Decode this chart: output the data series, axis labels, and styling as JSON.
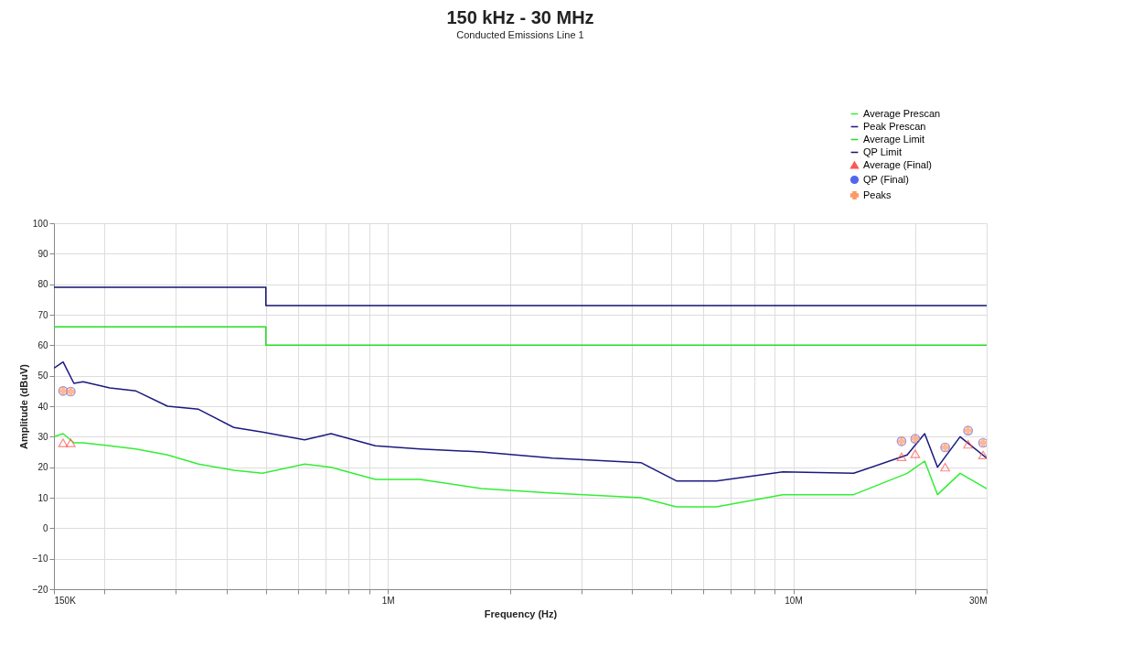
{
  "chart_data": {
    "type": "line",
    "title": "150 kHz - 30 MHz",
    "subtitle": "Conducted Emissions Line 1",
    "xlabel": "Frequency (Hz)",
    "ylabel": "Amplitude (dBuV)",
    "log": "x",
    "grid": true,
    "legend": "top right",
    "xlim": [
      150000,
      30000000
    ],
    "ylim": [
      -20,
      100
    ],
    "xticks": [
      {
        "value": 150000,
        "label": "150K"
      },
      {
        "value": 200000,
        "label": null
      },
      {
        "value": 300000,
        "label": null
      },
      {
        "value": 400000,
        "label": null
      },
      {
        "value": 500000,
        "label": null
      },
      {
        "value": 600000,
        "label": null
      },
      {
        "value": 700000,
        "label": null
      },
      {
        "value": 800000,
        "label": null
      },
      {
        "value": 900000,
        "label": null
      },
      {
        "value": 1000000,
        "label": "1M"
      },
      {
        "value": 2000000,
        "label": null
      },
      {
        "value": 3000000,
        "label": null
      },
      {
        "value": 4000000,
        "label": null
      },
      {
        "value": 5000000,
        "label": null
      },
      {
        "value": 6000000,
        "label": null
      },
      {
        "value": 7000000,
        "label": null
      },
      {
        "value": 8000000,
        "label": null
      },
      {
        "value": 9000000,
        "label": null
      },
      {
        "value": 10000000,
        "label": "10M"
      },
      {
        "value": 20000000,
        "label": null
      },
      {
        "value": 30000000,
        "label": "30M"
      }
    ],
    "yticks": [
      -20,
      -10,
      0,
      10,
      20,
      30,
      40,
      50,
      60,
      70,
      80,
      90,
      100
    ],
    "series": [
      {
        "name": "Average Prescan",
        "color": "#33ee33",
        "x": [
          150000,
          158000,
          168000,
          177000,
          206000,
          239000,
          286000,
          341000,
          417000,
          490000,
          623000,
          724000,
          931000,
          1200000,
          1700000,
          2550000,
          4210000,
          5150000,
          6460000,
          9430000,
          14100000,
          19100000,
          21100000,
          22700000,
          25800000,
          30000000
        ],
        "values": [
          30,
          31,
          28,
          28,
          27,
          26,
          24,
          21,
          19,
          18,
          21,
          20,
          16,
          16,
          13,
          11.5,
          10,
          7,
          7,
          11,
          11,
          18,
          22,
          11,
          18,
          13
        ]
      },
      {
        "name": "Peak Prescan",
        "color": "#1a1a80",
        "x": [
          150000,
          158000,
          168000,
          177000,
          206000,
          239000,
          286000,
          341000,
          417000,
          490000,
          623000,
          724000,
          931000,
          1200000,
          1700000,
          2550000,
          4210000,
          5150000,
          6460000,
          9430000,
          14100000,
          19100000,
          21100000,
          22700000,
          25800000,
          30000000
        ],
        "values": [
          52.5,
          54.5,
          47.5,
          48,
          46,
          45,
          40,
          39,
          33,
          31.5,
          29,
          31,
          27,
          26,
          25,
          23,
          21.5,
          15.5,
          15.5,
          18.5,
          18,
          24,
          31,
          20,
          30,
          23
        ]
      },
      {
        "name": "Average Limit",
        "color": "#22dd22",
        "x": [
          150000,
          500000,
          500000,
          30000000
        ],
        "values": [
          66,
          66,
          60,
          60
        ]
      },
      {
        "name": "QP Limit",
        "color": "#141470",
        "x": [
          150000,
          500000,
          500000,
          30000000
        ],
        "values": [
          79,
          79,
          73,
          73
        ]
      },
      {
        "name": "Average (Final)",
        "type": "scatter",
        "marker": "triangle",
        "color": "#ff5555",
        "x": [
          158000,
          165000,
          18500000,
          20000000,
          23700000,
          27000000,
          29400000
        ],
        "values": [
          28,
          28,
          23.4,
          24.4,
          20,
          27.5,
          24
        ]
      },
      {
        "name": "QP (Final)",
        "type": "scatter",
        "marker": "circle",
        "color": "#5566ee",
        "x": [
          158000,
          165000,
          18500000,
          20000000,
          23700000,
          27000000,
          29400000
        ],
        "values": [
          45,
          44.8,
          28.5,
          29.3,
          26.5,
          32,
          28
        ]
      },
      {
        "name": "Peaks",
        "type": "scatter",
        "marker": "cross",
        "color": "#ff9966",
        "x": [
          158000,
          165000,
          18500000,
          20000000,
          23700000,
          27000000,
          29400000
        ],
        "values": [
          45,
          44.8,
          28.5,
          29.3,
          26.5,
          32,
          28
        ]
      }
    ]
  }
}
